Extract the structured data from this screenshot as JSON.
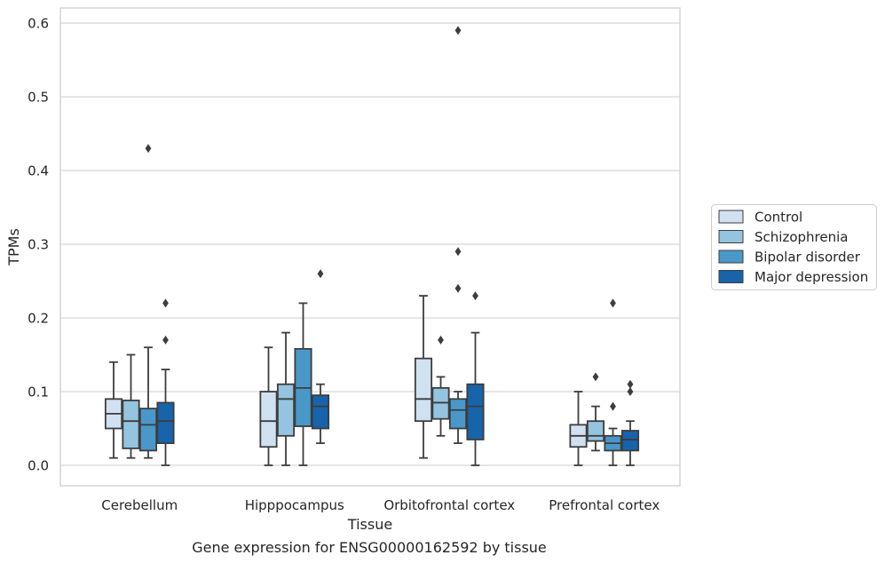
{
  "chart_data": {
    "type": "box",
    "xlabel": "Tissue",
    "ylabel": "TPMs",
    "caption": "Gene expression for ENSG00000162592 by tissue",
    "ylim": [
      -0.028,
      0.62
    ],
    "yticks": [
      0.0,
      0.1,
      0.2,
      0.3,
      0.4,
      0.5,
      0.6
    ],
    "ytick_labels": [
      "0.0",
      "0.1",
      "0.2",
      "0.3",
      "0.4",
      "0.5",
      "0.6"
    ],
    "grid": "horizontal",
    "legend_position": "right",
    "categories": [
      "Cerebellum",
      "Hipppocampus",
      "Orbitofrontal cortex",
      "Prefrontal cortex"
    ],
    "series": [
      {
        "name": "Control",
        "color": "#d0e1f2",
        "boxes": [
          {
            "whislo": 0.01,
            "q1": 0.05,
            "med": 0.07,
            "q3": 0.09,
            "whishi": 0.14,
            "fliers": []
          },
          {
            "whislo": 0.0,
            "q1": 0.025,
            "med": 0.06,
            "q3": 0.1,
            "whishi": 0.16,
            "fliers": []
          },
          {
            "whislo": 0.01,
            "q1": 0.06,
            "med": 0.09,
            "q3": 0.145,
            "whishi": 0.23,
            "fliers": []
          },
          {
            "whislo": 0.0,
            "q1": 0.025,
            "med": 0.04,
            "q3": 0.055,
            "whishi": 0.1,
            "fliers": []
          }
        ]
      },
      {
        "name": "Schizophrenia",
        "color": "#94c4df",
        "boxes": [
          {
            "whislo": 0.01,
            "q1": 0.023,
            "med": 0.06,
            "q3": 0.088,
            "whishi": 0.15,
            "fliers": []
          },
          {
            "whislo": 0.0,
            "q1": 0.04,
            "med": 0.09,
            "q3": 0.11,
            "whishi": 0.18,
            "fliers": []
          },
          {
            "whislo": 0.04,
            "q1": 0.063,
            "med": 0.085,
            "q3": 0.105,
            "whishi": 0.12,
            "fliers": [
              0.17
            ]
          },
          {
            "whislo": 0.02,
            "q1": 0.033,
            "med": 0.04,
            "q3": 0.06,
            "whishi": 0.08,
            "fliers": [
              0.12
            ]
          }
        ]
      },
      {
        "name": "Bipolar disorder",
        "color": "#4a98c9",
        "boxes": [
          {
            "whislo": 0.01,
            "q1": 0.02,
            "med": 0.055,
            "q3": 0.077,
            "whishi": 0.16,
            "fliers": [
              0.43
            ]
          },
          {
            "whislo": 0.0,
            "q1": 0.053,
            "med": 0.105,
            "q3": 0.158,
            "whishi": 0.22,
            "fliers": []
          },
          {
            "whislo": 0.03,
            "q1": 0.05,
            "med": 0.075,
            "q3": 0.09,
            "whishi": 0.1,
            "fliers": [
              0.24,
              0.29,
              0.59
            ]
          },
          {
            "whislo": 0.0,
            "q1": 0.02,
            "med": 0.03,
            "q3": 0.04,
            "whishi": 0.05,
            "fliers": [
              0.08,
              0.22
            ]
          }
        ]
      },
      {
        "name": "Major depression",
        "color": "#1764ab",
        "boxes": [
          {
            "whislo": 0.0,
            "q1": 0.03,
            "med": 0.06,
            "q3": 0.085,
            "whishi": 0.13,
            "fliers": [
              0.17,
              0.22
            ]
          },
          {
            "whislo": 0.03,
            "q1": 0.05,
            "med": 0.08,
            "q3": 0.095,
            "whishi": 0.11,
            "fliers": [
              0.26
            ]
          },
          {
            "whislo": 0.0,
            "q1": 0.035,
            "med": 0.08,
            "q3": 0.11,
            "whishi": 0.18,
            "fliers": [
              0.23
            ]
          },
          {
            "whislo": 0.0,
            "q1": 0.02,
            "med": 0.035,
            "q3": 0.047,
            "whishi": 0.06,
            "fliers": [
              0.1,
              0.11
            ]
          }
        ]
      }
    ]
  }
}
